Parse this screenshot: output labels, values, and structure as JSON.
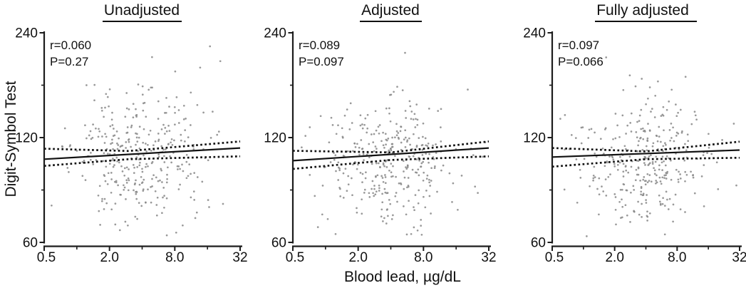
{
  "figure": {
    "xlabel": "Blood lead, µg/dL",
    "ylabel": "Digit-Symbol Test"
  },
  "colors": {
    "point": "#878787",
    "line": "#121212",
    "axis": "#1c1c1c",
    "text": "#111111"
  },
  "chart_data": [
    {
      "type": "scatter",
      "title": "Unadjusted",
      "annotation": {
        "r": "r=0.060",
        "p": "P=0.27"
      },
      "x_axis": {
        "label": "Blood lead, µg/dL",
        "scale": "log",
        "min": 0.5,
        "max": 32,
        "major_ticks": [
          0.5,
          2,
          8,
          32
        ],
        "tick_labels": [
          "0.5",
          "2.0",
          "8.0",
          "32"
        ],
        "minor_ticks": [
          1,
          4,
          16
        ]
      },
      "y_axis": {
        "label": "Digit-Symbol Test",
        "scale": "log",
        "min": 60,
        "max": 240,
        "major_ticks": [
          240,
          120,
          60
        ],
        "tick_labels": [
          "240",
          "120",
          "60"
        ],
        "minor_ticks": [
          169.71,
          84.85
        ]
      },
      "trend": {
        "solid": [
          [
            0.5,
            104
          ],
          [
            32,
            112
          ]
        ],
        "upper_dotted": [
          [
            0.5,
            111.5
          ],
          [
            3,
            109.8
          ],
          [
            32,
            117
          ]
        ],
        "lower_dotted": [
          [
            0.5,
            99.5
          ],
          [
            3,
            104
          ],
          [
            32,
            106
          ]
        ]
      },
      "points_spec": {
        "n": 340,
        "seed": 11,
        "x_log2_mean": 2.9,
        "x_log2_sd": 1.05,
        "x_log2_range": [
          0.1,
          5.92
        ],
        "y_log2_mean": 0.8,
        "y_log2_sd": 0.31,
        "y_log2_range": [
          0.05,
          1.95
        ]
      }
    },
    {
      "type": "scatter",
      "title": "Adjusted",
      "annotation": {
        "r": "r=0.089",
        "p": "P=0.097"
      },
      "x_axis": {
        "label": "Blood lead, µg/dL",
        "scale": "log",
        "min": 0.5,
        "max": 32,
        "major_ticks": [
          0.5,
          2,
          8,
          32
        ],
        "tick_labels": [
          "0.5",
          "2.0",
          "8.0",
          "32"
        ],
        "minor_ticks": [
          1,
          4,
          16
        ]
      },
      "y_axis": {
        "label": "Digit-Symbol Test",
        "scale": "log",
        "min": 60,
        "max": 240,
        "major_ticks": [
          240,
          120,
          60
        ],
        "tick_labels": [
          "240",
          "120",
          "60"
        ],
        "minor_ticks": [
          169.71,
          84.85
        ]
      },
      "trend": {
        "solid": [
          [
            0.5,
            103
          ],
          [
            32,
            112
          ]
        ],
        "upper_dotted": [
          [
            0.5,
            110
          ],
          [
            4,
            108.8
          ],
          [
            32,
            117
          ]
        ],
        "lower_dotted": [
          [
            0.5,
            97.5
          ],
          [
            4,
            103.5
          ],
          [
            32,
            106
          ]
        ]
      },
      "points_spec": {
        "n": 345,
        "seed": 22,
        "x_log2_mean": 2.95,
        "x_log2_sd": 1.02,
        "x_log2_range": [
          0.1,
          5.92
        ],
        "y_log2_mean": 0.79,
        "y_log2_sd": 0.31,
        "y_log2_range": [
          0.05,
          1.95
        ]
      }
    },
    {
      "type": "scatter",
      "title": "Fully adjusted",
      "annotation": {
        "r": "r=0.097",
        "p": "P=0.066"
      },
      "x_axis": {
        "label": "Blood lead, µg/dL",
        "scale": "log",
        "min": 0.5,
        "max": 32,
        "major_ticks": [
          0.5,
          2,
          8,
          32
        ],
        "tick_labels": [
          "0.5",
          "2.0",
          "8.0",
          "32"
        ],
        "minor_ticks": [
          1,
          4,
          16
        ]
      },
      "y_axis": {
        "label": "Digit-Symbol Test",
        "scale": "log",
        "min": 60,
        "max": 240,
        "major_ticks": [
          240,
          120,
          60
        ],
        "tick_labels": [
          "240",
          "120",
          "60"
        ],
        "minor_ticks": [
          169.71,
          84.85
        ]
      },
      "trend": {
        "solid": [
          [
            0.5,
            105.5
          ],
          [
            32,
            110.5
          ]
        ],
        "upper_dotted": [
          [
            0.5,
            112
          ],
          [
            4,
            109.5
          ],
          [
            32,
            116.8
          ]
        ],
        "lower_dotted": [
          [
            0.5,
            99
          ],
          [
            4,
            104
          ],
          [
            32,
            105
          ]
        ]
      },
      "points_spec": {
        "n": 335,
        "seed": 33,
        "x_log2_mean": 2.92,
        "x_log2_sd": 1.04,
        "x_log2_range": [
          0.1,
          5.92
        ],
        "y_log2_mean": 0.78,
        "y_log2_sd": 0.31,
        "y_log2_range": [
          0.05,
          1.95
        ]
      }
    }
  ]
}
